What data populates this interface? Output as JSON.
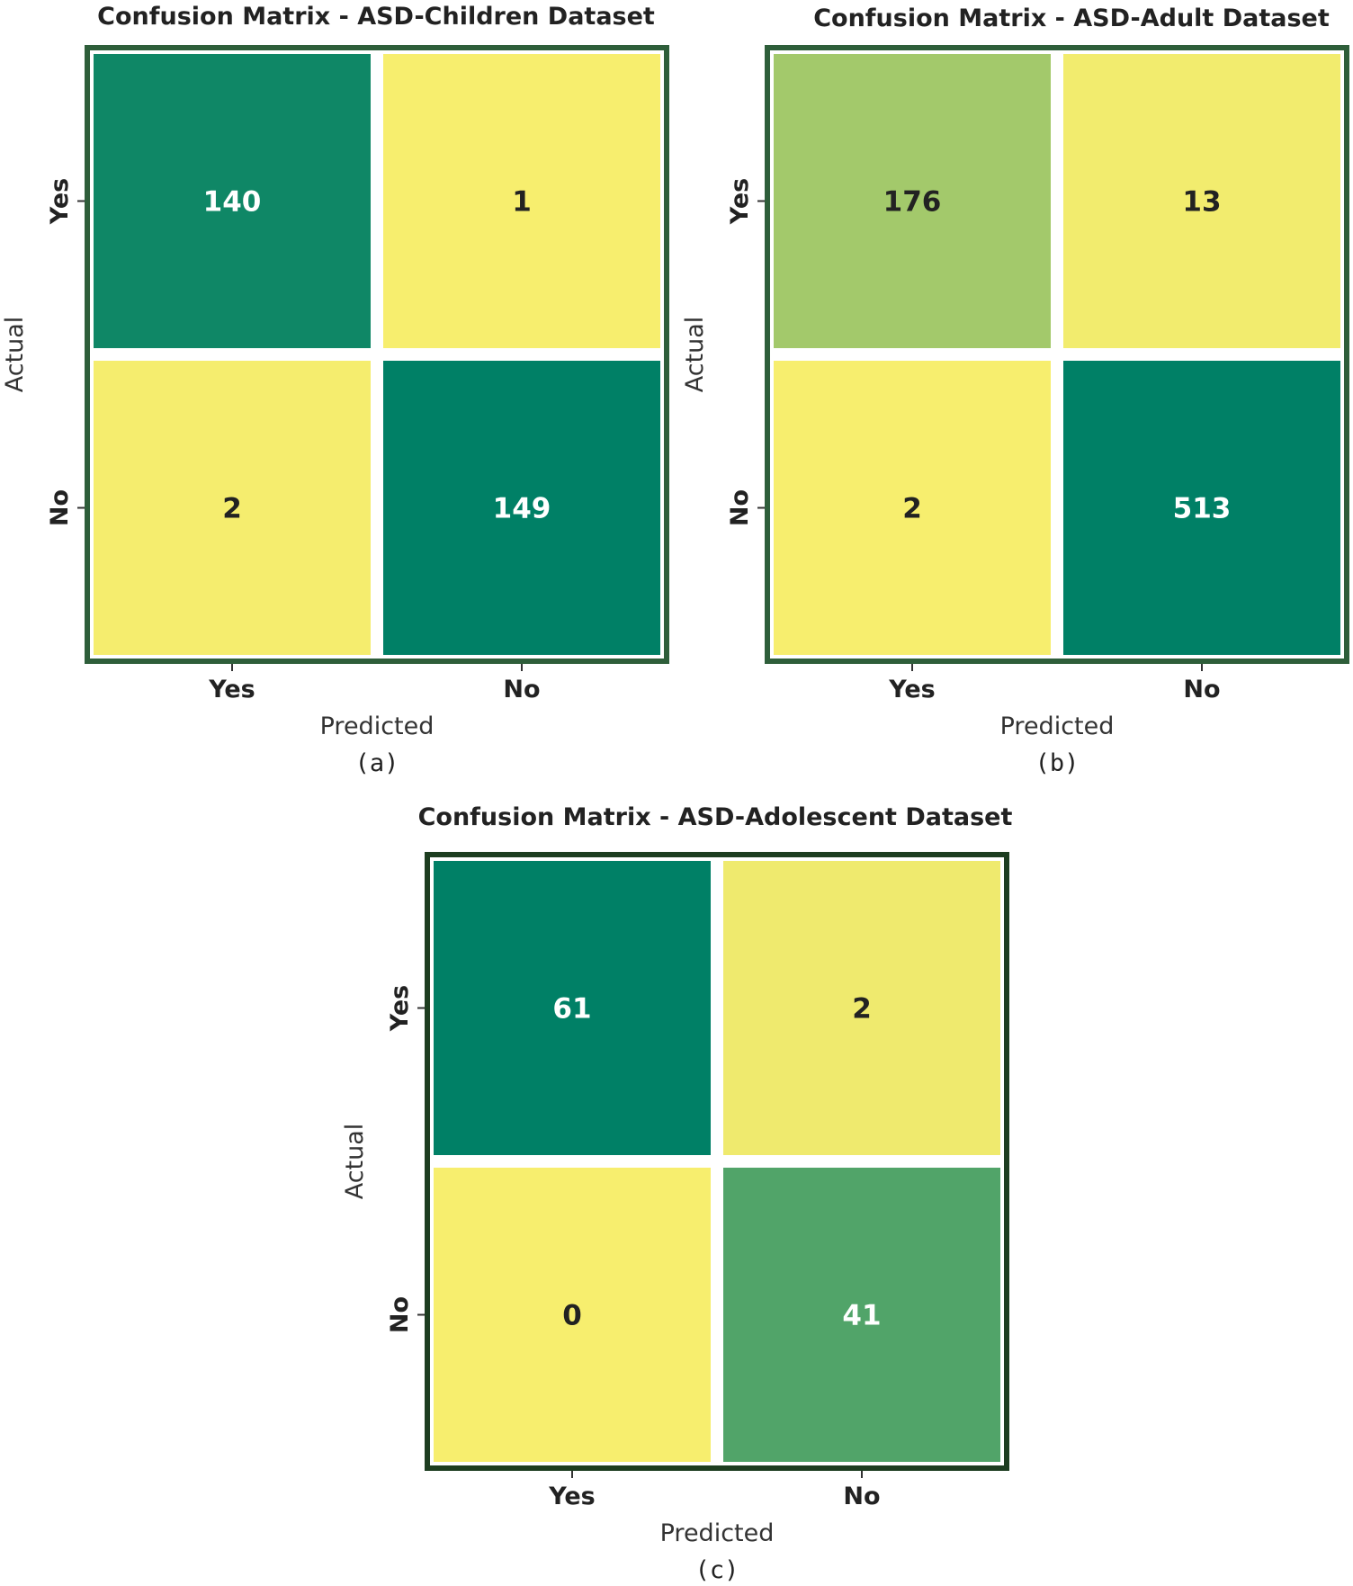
{
  "chart_data": [
    {
      "type": "heatmap",
      "title": "Confusion Matrix - ASD-Children Dataset",
      "xlabel": "Predicted",
      "ylabel": "Actual",
      "x_categories": [
        "Yes",
        "No"
      ],
      "y_categories": [
        "Yes",
        "No"
      ],
      "values": [
        [
          140,
          1
        ],
        [
          2,
          149
        ]
      ],
      "caption": "(a)",
      "colormap": "summer_r",
      "border_color": "#2e5e3a"
    },
    {
      "type": "heatmap",
      "title": "Confusion Matrix - ASD-Adult Dataset",
      "xlabel": "Predicted",
      "ylabel": "Actual",
      "x_categories": [
        "Yes",
        "No"
      ],
      "y_categories": [
        "Yes",
        "No"
      ],
      "values": [
        [
          176,
          13
        ],
        [
          2,
          513
        ]
      ],
      "caption": "(b)",
      "colormap": "summer_r",
      "border_color": "#2e5e3a"
    },
    {
      "type": "heatmap",
      "title": "Confusion Matrix - ASD-Adolescent Dataset",
      "xlabel": "Predicted",
      "ylabel": "Actual",
      "x_categories": [
        "Yes",
        "No"
      ],
      "y_categories": [
        "Yes",
        "No"
      ],
      "values": [
        [
          61,
          2
        ],
        [
          0,
          41
        ]
      ],
      "caption": "(c)",
      "colormap": "summer_r",
      "border_color": "#1d3d20"
    }
  ],
  "colors": {
    "cell_gap": "#ffffff",
    "text_dark": "#222222",
    "text_light": "#ffffff"
  }
}
